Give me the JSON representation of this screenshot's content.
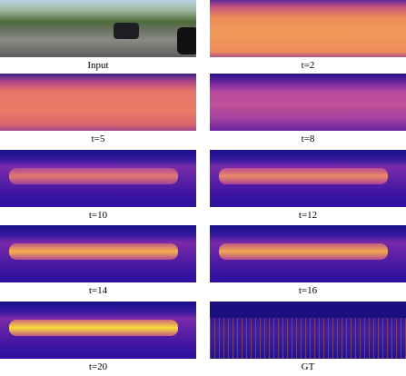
{
  "panels": [
    {
      "label": "Input"
    },
    {
      "label": "t=2"
    },
    {
      "label": "t=5"
    },
    {
      "label": "t=8"
    },
    {
      "label": "t=10"
    },
    {
      "label": "t=12"
    },
    {
      "label": "t=14"
    },
    {
      "label": "t=16"
    },
    {
      "label": "t=20"
    },
    {
      "label": "GT"
    }
  ]
}
